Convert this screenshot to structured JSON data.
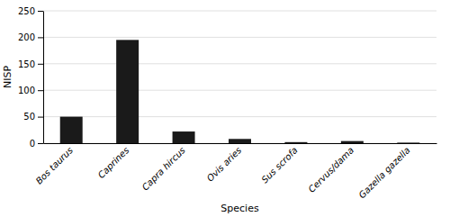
{
  "chart_data": {
    "type": "bar",
    "categories": [
      "Bos taurus",
      "Caprines",
      "Capra hircus",
      "Ovis aries",
      "Sus scrofa",
      "Cervus/dama",
      "Gazella gazella"
    ],
    "values": [
      50,
      195,
      22,
      8,
      2,
      4,
      1
    ],
    "color": "#1a1a1a",
    "xlabel": "Species",
    "ylabel": "NISP",
    "ylim": [
      0,
      250
    ],
    "yticks": [
      0,
      50,
      100,
      150,
      200,
      250
    ],
    "grid": true
  }
}
